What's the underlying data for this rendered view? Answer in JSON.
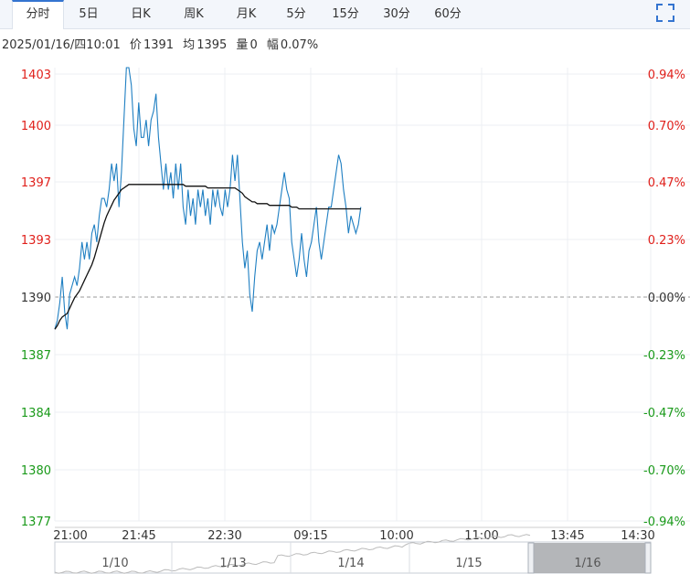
{
  "tabs": [
    {
      "label": "分时",
      "active": true
    },
    {
      "label": "5日",
      "active": false
    },
    {
      "label": "日K",
      "active": false
    },
    {
      "label": "周K",
      "active": false
    },
    {
      "label": "月K",
      "active": false
    },
    {
      "label": "5分",
      "active": false
    },
    {
      "label": "15分",
      "active": false
    },
    {
      "label": "30分",
      "active": false
    },
    {
      "label": "60分",
      "active": false
    }
  ],
  "toolbar": {
    "fullscreen_icon": "fullscreen-icon"
  },
  "info": {
    "datetime": "2025/01/16/四10:01",
    "price_label": "价",
    "price": "1391",
    "avg_label": "均",
    "avg": "1395",
    "vol_label": "量",
    "vol": "0",
    "chg_label": "幅",
    "chg": "0.07%"
  },
  "colors": {
    "up": "#e0201b",
    "down": "#1a9a1a",
    "price_line": "#1f7fc2",
    "avg_line": "#111111",
    "tab_accent": "#3474d0"
  },
  "chart_data": {
    "type": "line",
    "y_ticks": [
      "1403",
      "1400",
      "1397",
      "1393",
      "1390",
      "1387",
      "1384",
      "1380",
      "1377"
    ],
    "pct_ticks": [
      "0.94%",
      "0.70%",
      "0.47%",
      "0.23%",
      "0.00%",
      "-0.23%",
      "-0.47%",
      "-0.70%",
      "-0.94%"
    ],
    "x_ticks": [
      "21:00",
      "21:45",
      "22:30",
      "09:15",
      "10:00",
      "11:00",
      "13:45",
      "14:30"
    ],
    "prev_close": 1390,
    "ylim": [
      1377,
      1403
    ],
    "x_slots": 360,
    "series": [
      {
        "key": "price",
        "values": [
          1388,
          1388.5,
          1389.5,
          1391,
          1389,
          1388,
          1390,
          1390.5,
          1391,
          1390.5,
          1391.5,
          1393,
          1392,
          1393,
          1392,
          1393.5,
          1394,
          1393,
          1394.5,
          1395.5,
          1395.5,
          1395,
          1396,
          1397.5,
          1396.5,
          1397.5,
          1395,
          1397,
          1400,
          1403,
          1403,
          1402,
          1399.5,
          1398.5,
          1401,
          1399,
          1399,
          1400,
          1398.5,
          1400,
          1400.5,
          1401.5,
          1399,
          1397.5,
          1396,
          1397.5,
          1396,
          1397,
          1395.5,
          1397.5,
          1396,
          1397.5,
          1395,
          1394,
          1396,
          1394.5,
          1395.5,
          1394,
          1396,
          1395,
          1396,
          1394.5,
          1395.5,
          1394,
          1396,
          1395,
          1396,
          1395,
          1394.5,
          1396,
          1395,
          1396,
          1398,
          1396.5,
          1398,
          1395.5,
          1393,
          1391.5,
          1392.5,
          1390,
          1389,
          1391,
          1392.5,
          1393,
          1392,
          1393,
          1394,
          1392.5,
          1394,
          1393.5,
          1394,
          1395,
          1396,
          1397,
          1396,
          1395.5,
          1393,
          1392,
          1391,
          1392,
          1393.5,
          1392,
          1391,
          1392.5,
          1393,
          1394,
          1395,
          1393,
          1392,
          1393,
          1394,
          1395,
          1395,
          1396,
          1397,
          1398,
          1397.5,
          1396,
          1395,
          1393.5,
          1394.5,
          1394,
          1393.5,
          1394,
          1395
        ],
        "color": "#1f7fc2"
      },
      {
        "key": "avg",
        "values": [
          1388,
          1388.2,
          1388.5,
          1388.7,
          1388.8,
          1388.9,
          1389.2,
          1389.5,
          1389.8,
          1390,
          1390.2,
          1390.5,
          1390.8,
          1391.1,
          1391.4,
          1391.7,
          1392.1,
          1392.6,
          1393.1,
          1393.6,
          1394.1,
          1394.5,
          1394.8,
          1395.1,
          1395.4,
          1395.6,
          1395.8,
          1396,
          1396.1,
          1396.2,
          1396.3,
          1396.3,
          1396.3,
          1396.3,
          1396.3,
          1396.3,
          1396.3,
          1396.3,
          1396.3,
          1396.3,
          1396.3,
          1396.3,
          1396.3,
          1396.3,
          1396.3,
          1396.3,
          1396.3,
          1396.3,
          1396.3,
          1396.3,
          1396.3,
          1396.3,
          1396.3,
          1396.2,
          1396.2,
          1396.2,
          1396.2,
          1396.2,
          1396.2,
          1396.2,
          1396.2,
          1396.2,
          1396.1,
          1396.1,
          1396.1,
          1396.1,
          1396.1,
          1396.1,
          1396.1,
          1396.1,
          1396.1,
          1396.1,
          1396.1,
          1396.1,
          1396,
          1395.9,
          1395.8,
          1395.6,
          1395.5,
          1395.4,
          1395.3,
          1395.3,
          1395.2,
          1395.2,
          1395.2,
          1395.2,
          1395.2,
          1395.1,
          1395.1,
          1395.1,
          1395.1,
          1395.1,
          1395.1,
          1395.1,
          1395.1,
          1395.1,
          1395,
          1395,
          1395,
          1394.9,
          1394.9,
          1394.9,
          1394.9,
          1394.9,
          1394.9,
          1394.9,
          1394.9,
          1394.9,
          1394.9,
          1394.9,
          1394.9,
          1394.9,
          1394.9,
          1394.9,
          1394.9,
          1394.9,
          1394.9,
          1394.9,
          1394.9,
          1394.9,
          1394.9,
          1394.9,
          1394.9,
          1394.9,
          1394.9
        ],
        "color": "#111111"
      }
    ],
    "navigator": {
      "labels": [
        "1/10",
        "1/13",
        "1/14",
        "1/15",
        "1/16"
      ]
    }
  }
}
